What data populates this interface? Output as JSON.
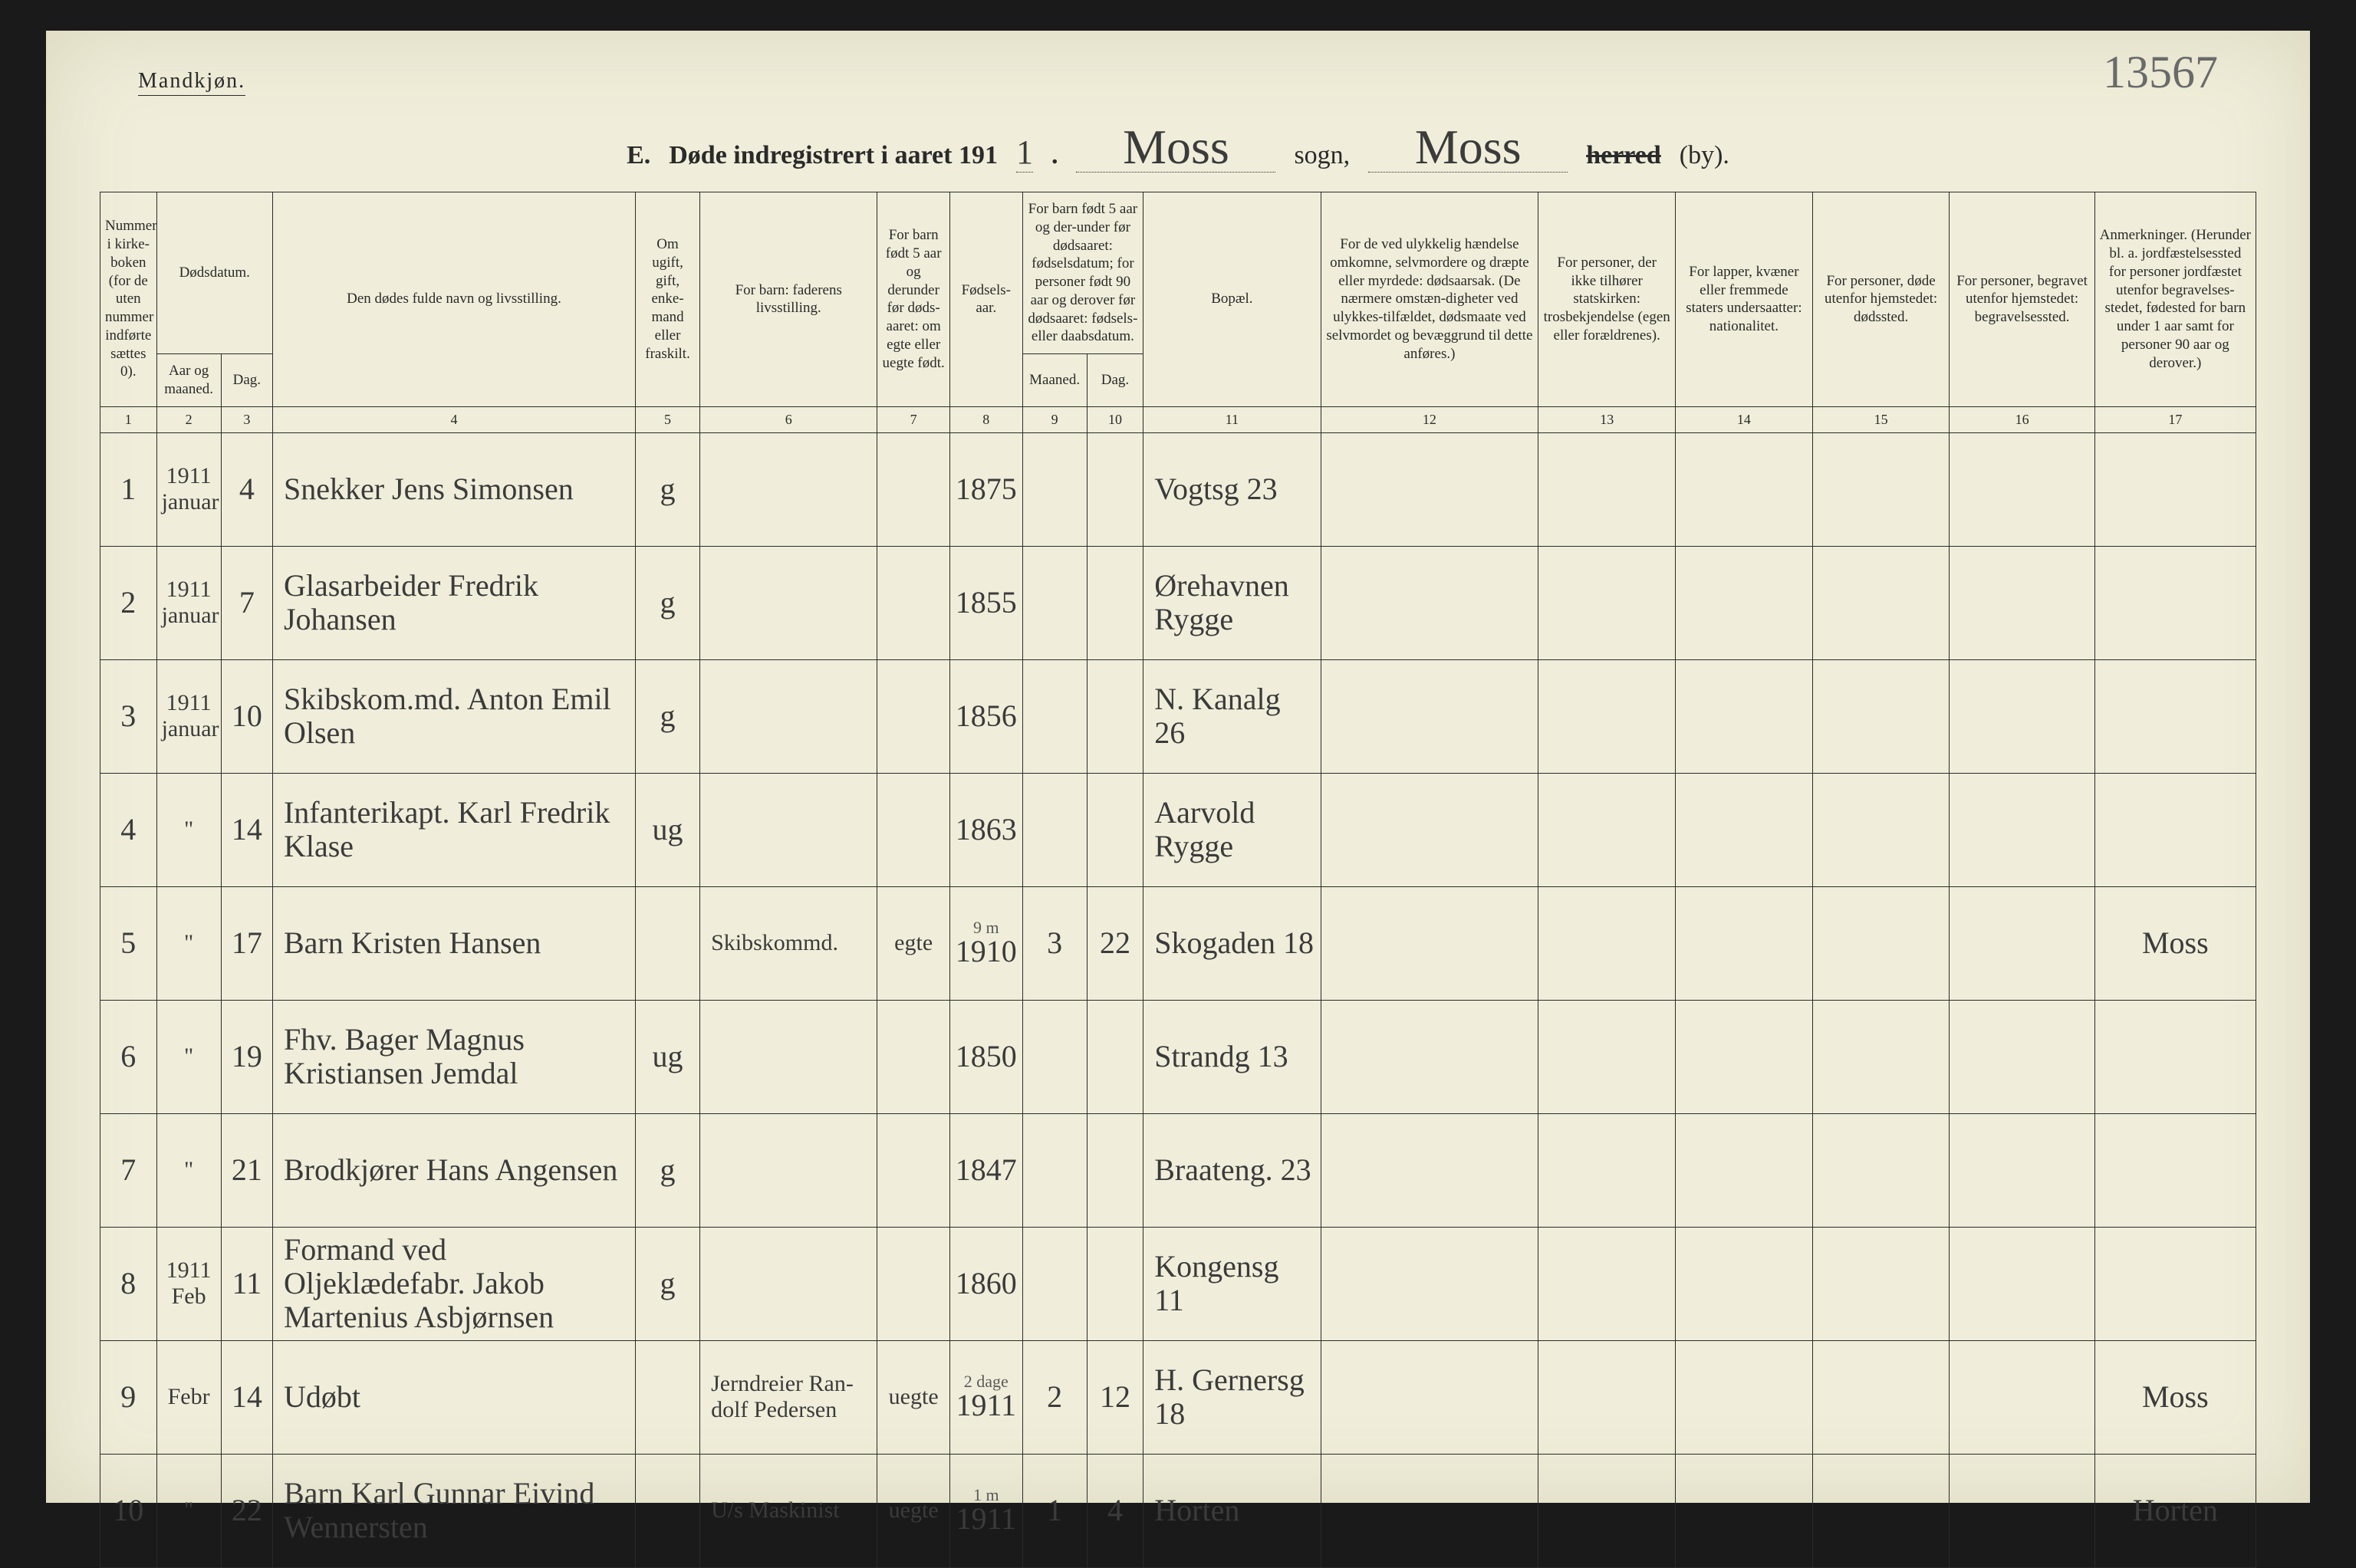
{
  "gender_label": "Mandkjøn.",
  "top_right_number": "13567",
  "title": {
    "letter": "E.",
    "prefix": "Døde indregistrert i aaret 191",
    "year_suffix": "1",
    "dot": ".",
    "sogn_value": "Moss",
    "sogn_label": "sogn,",
    "herred_value": "Moss",
    "herred_struck": "herred",
    "by_label": "(by)."
  },
  "headers": {
    "c1": "Nummer i kirke-boken (for de uten nummer indførte sættes 0).",
    "c2_top": "Dødsdatum.",
    "c2a": "Aar og maaned.",
    "c2b": "Dag.",
    "c4": "Den dødes fulde navn og livsstilling.",
    "c5": "Om ugift, gift, enke-mand eller fraskilt.",
    "c6": "For barn: faderens livsstilling.",
    "c7": "For barn født 5 aar og derunder før døds-aaret: om egte eller uegte født.",
    "c8": "Fødsels-aar.",
    "c9_top": "For barn født 5 aar og der-under før dødsaaret: fødselsdatum; for personer født 90 aar og derover før dødsaaret: fødsels- eller daabsdatum.",
    "c9a": "Maaned.",
    "c9b": "Dag.",
    "c11": "Bopæl.",
    "c12": "For de ved ulykkelig hændelse omkomne, selvmordere og dræpte eller myrdede: dødsaarsak. (De nærmere omstæn-digheter ved ulykkes-tilfældet, dødsmaate ved selvmordet og bevæggrund til dette anføres.)",
    "c13": "For personer, der ikke tilhører statskirken: trosbekjendelse (egen eller forældrenes).",
    "c14": "For lapper, kvæner eller fremmede staters undersaatter: nationalitet.",
    "c15": "For personer, døde utenfor hjemstedet: dødssted.",
    "c16": "For personer, begravet utenfor hjemstedet: begravelsessted.",
    "c17": "Anmerkninger. (Herunder bl. a. jordfæstelsessted for personer jordfæstet utenfor begravelses-stedet, fødested for barn under 1 aar samt for personer 90 aar og derover.)"
  },
  "colnums": [
    "1",
    "2",
    "3",
    "4",
    "5",
    "6",
    "7",
    "8",
    "9",
    "10",
    "11",
    "12",
    "13",
    "14",
    "15",
    "16",
    "17"
  ],
  "rows": [
    {
      "n": "1",
      "aar": "1911 januar",
      "dag": "4",
      "navn": "Snekker Jens Simonsen",
      "stand": "g",
      "faderen": "",
      "egte": "",
      "faar": "1875",
      "fm": "",
      "fd": "",
      "bopael": "Vogtsg 23",
      "c12": "",
      "c13": "",
      "c14": "",
      "c15": "",
      "c16": "",
      "c17": ""
    },
    {
      "n": "2",
      "aar": "1911 januar",
      "dag": "7",
      "navn": "Glasarbeider Fredrik Johansen",
      "stand": "g",
      "faderen": "",
      "egte": "",
      "faar": "1855",
      "fm": "",
      "fd": "",
      "bopael": "Ørehavnen Rygge",
      "c12": "",
      "c13": "",
      "c14": "",
      "c15": "",
      "c16": "",
      "c17": ""
    },
    {
      "n": "3",
      "aar": "1911 januar",
      "dag": "10",
      "navn": "Skibskom.md. Anton Emil Olsen",
      "stand": "g",
      "faderen": "",
      "egte": "",
      "faar": "1856",
      "fm": "",
      "fd": "",
      "bopael": "N. Kanalg 26",
      "c12": "",
      "c13": "",
      "c14": "",
      "c15": "",
      "c16": "",
      "c17": ""
    },
    {
      "n": "4",
      "aar": "\"",
      "dag": "14",
      "navn": "Infanterikapt. Karl Fredrik Klase",
      "stand": "ug",
      "faderen": "",
      "egte": "",
      "faar": "1863",
      "fm": "",
      "fd": "",
      "bopael": "Aarvold Rygge",
      "c12": "",
      "c13": "",
      "c14": "",
      "c15": "",
      "c16": "",
      "c17": ""
    },
    {
      "n": "5",
      "aar": "\"",
      "dag": "17",
      "navn": "Barn Kristen Hansen",
      "stand": "",
      "faderen": "Skibskommd.",
      "egte": "egte",
      "faar": "1910",
      "annot": "9 m",
      "fm": "3",
      "fd": "22",
      "bopael": "Skogaden 18",
      "c12": "",
      "c13": "",
      "c14": "",
      "c15": "",
      "c16": "",
      "c17": "Moss"
    },
    {
      "n": "6",
      "aar": "\"",
      "dag": "19",
      "navn": "Fhv. Bager Magnus Kristiansen Jemdal",
      "stand": "ug",
      "faderen": "",
      "egte": "",
      "faar": "1850",
      "fm": "",
      "fd": "",
      "bopael": "Strandg 13",
      "c12": "",
      "c13": "",
      "c14": "",
      "c15": "",
      "c16": "",
      "c17": ""
    },
    {
      "n": "7",
      "aar": "\"",
      "dag": "21",
      "navn": "Brodkjører Hans Angensen",
      "stand": "g",
      "faderen": "",
      "egte": "",
      "faar": "1847",
      "fm": "",
      "fd": "",
      "bopael": "Braateng. 23",
      "c12": "",
      "c13": "",
      "c14": "",
      "c15": "",
      "c16": "",
      "c17": ""
    },
    {
      "n": "8",
      "aar": "1911 Feb",
      "dag": "11",
      "navn": "Formand ved Oljeklædefabr. Jakob Martenius Asbjørnsen",
      "stand": "g",
      "faderen": "",
      "egte": "",
      "faar": "1860",
      "fm": "",
      "fd": "",
      "bopael": "Kongensg 11",
      "c12": "",
      "c13": "",
      "c14": "",
      "c15": "",
      "c16": "",
      "c17": ""
    },
    {
      "n": "9",
      "aar": "Febr",
      "dag": "14",
      "navn": "Udøbt",
      "stand": "",
      "faderen": "Jerndreier Ran-dolf Pedersen",
      "egte": "uegte",
      "faar": "1911",
      "annot": "2 dage",
      "fm": "2",
      "fd": "12",
      "bopael": "H. Gernersg 18",
      "c12": "",
      "c13": "",
      "c14": "",
      "c15": "",
      "c16": "",
      "c17": "Moss"
    },
    {
      "n": "10",
      "aar": "\"",
      "dag": "22",
      "navn": "Barn Karl Gunnar Eivind Wennersten",
      "stand": "",
      "faderen": "U/s Maskinist",
      "egte": "uegte",
      "faar": "1911",
      "annot": "1 m",
      "fm": "1",
      "fd": "4",
      "bopael": "Horten",
      "c12": "",
      "c13": "",
      "c14": "",
      "c15": "",
      "c16": "",
      "c17": "Horten"
    }
  ],
  "colors": {
    "paper": "#f0eeda",
    "ink": "#2a2a2a",
    "handwriting": "#3b3b3b",
    "pencil": "#6a6a6a",
    "background": "#1a1a1a"
  }
}
